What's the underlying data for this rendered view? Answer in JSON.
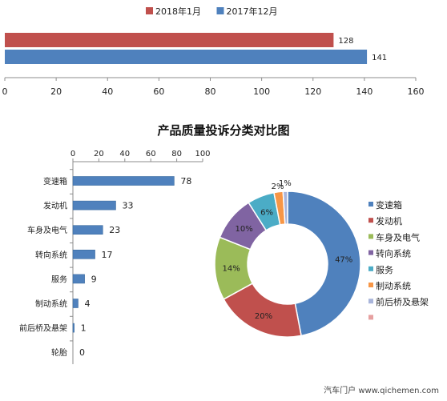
{
  "title": "产品质量投诉分类对比图",
  "watermark": "汽车门户 www.qichemen.com",
  "colors": {
    "series_2018": "#C0504D",
    "series_2017": "#4F81BD",
    "hbar": "#4F81BD",
    "axis": "#8c8c8c",
    "donut_border": "#ffffff",
    "legend_extra": "#E6A0A0"
  },
  "chart_data": [
    {
      "type": "bar",
      "orientation": "horizontal",
      "title": "",
      "legend_position": "top",
      "series": [
        {
          "name": "2018年1月",
          "values": [
            128
          ]
        },
        {
          "name": "2017年12月",
          "values": [
            141
          ]
        }
      ],
      "xlim": [
        0,
        160
      ],
      "xticks": [
        "0",
        "20",
        "40",
        "60",
        "80",
        "100",
        "120",
        "140",
        "160"
      ],
      "grid": false
    },
    {
      "type": "bar",
      "orientation": "horizontal",
      "categories": [
        "变速箱",
        "发动机",
        "车身及电气",
        "转向系统",
        "服务",
        "制动系统",
        "前后桥及悬架",
        "轮胎"
      ],
      "values": [
        78,
        33,
        23,
        17,
        9,
        4,
        1,
        0
      ],
      "xlim": [
        0,
        100
      ],
      "xticks": [
        "0",
        "20",
        "40",
        "60",
        "80",
        "100"
      ],
      "axis_position": "top",
      "grid": false
    },
    {
      "type": "pie",
      "style": "donut",
      "labels": [
        "变速箱",
        "发动机",
        "车身及电气",
        "转向系统",
        "服务",
        "制动系统",
        "前后桥及悬架"
      ],
      "values": [
        47,
        20,
        14,
        10,
        6,
        2,
        1
      ],
      "data_labels": [
        "47%",
        "20%",
        "14%",
        "10%",
        "6%",
        "2%",
        "1%"
      ],
      "colors": [
        "#4F81BD",
        "#C0504D",
        "#9BBB59",
        "#8064A2",
        "#4BACC6",
        "#F79646",
        "#A9B5DB"
      ],
      "legend_position": "right"
    }
  ]
}
